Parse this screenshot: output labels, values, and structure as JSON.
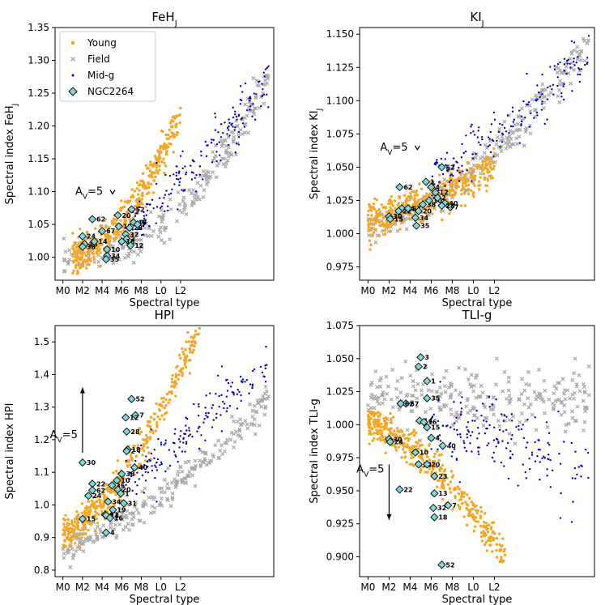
{
  "chart_data": [
    {
      "type": "scatter",
      "title": "FeH",
      "title_sub": "J",
      "xlabel": "Spectral type",
      "ylabel": "Spectral index FeH",
      "ylabel_sub": "J",
      "xlim": [
        -0.8,
        21.5
      ],
      "ylim": [
        0.965,
        1.35
      ],
      "x_ticks": [
        0,
        2,
        4,
        6,
        8,
        10,
        12
      ],
      "x_tick_labels": [
        "M0",
        "M2",
        "M4",
        "M6",
        "M8",
        "L0",
        "L2"
      ],
      "y_ticks": [
        1.0,
        1.05,
        1.1,
        1.15,
        1.2,
        1.25,
        1.3,
        1.35
      ],
      "y_tick_labels": [
        "1.00",
        "1.05",
        "1.10",
        "1.15",
        "1.20",
        "1.25",
        "1.30",
        "1.35"
      ],
      "legend": {
        "placement": "top-left",
        "entries": [
          {
            "label": "Young",
            "marker": "dot",
            "color": "#f5a623"
          },
          {
            "label": "Field",
            "marker": "x",
            "color": "#a9a9a9"
          },
          {
            "label": "Mid-g",
            "marker": "dot-small",
            "color": "#0000cc"
          },
          {
            "label": "NGC2264",
            "marker": "diamond",
            "color": "#7fd8d8"
          }
        ]
      },
      "av_arrow": {
        "label": "A",
        "sub": "V",
        "value": "=5",
        "x": 2.5,
        "y_start": 1.1,
        "y_end": 1.095
      },
      "field_trend": {
        "x0": 0,
        "x1": 21,
        "y0": 1.0,
        "y1": 1.28,
        "power": 2.3
      },
      "young_trend": {
        "x0": 1,
        "x1": 12,
        "y0": 1.0,
        "y1": 1.22,
        "power": 1.8
      },
      "midg_trend": {
        "x0": 7,
        "x1": 21,
        "y0": 1.06,
        "y1": 1.27,
        "power": 1.3
      },
      "ngc2264": [
        {
          "label": "62",
          "x": 3.0,
          "y": 1.058
        },
        {
          "label": "24",
          "x": 2.0,
          "y": 1.032
        },
        {
          "label": "16",
          "x": 2.2,
          "y": 1.02
        },
        {
          "label": "38",
          "x": 2.0,
          "y": 1.016
        },
        {
          "label": "67",
          "x": 4.0,
          "y": 1.04
        },
        {
          "label": "14",
          "x": 3.2,
          "y": 1.024
        },
        {
          "label": "10",
          "x": 4.5,
          "y": 1.012
        },
        {
          "label": "34",
          "x": 4.5,
          "y": 1.002
        },
        {
          "label": "35",
          "x": 4.4,
          "y": 0.997
        },
        {
          "label": "20",
          "x": 5.6,
          "y": 1.064
        },
        {
          "label": "15",
          "x": 5.7,
          "y": 1.047
        },
        {
          "label": "28",
          "x": 6.8,
          "y": 1.045
        },
        {
          "label": "40",
          "x": 7.2,
          "y": 1.053
        },
        {
          "label": "7",
          "x": 7.6,
          "y": 1.05
        },
        {
          "label": "52",
          "x": 7.0,
          "y": 1.073
        },
        {
          "label": "32",
          "x": 6.4,
          "y": 1.035
        },
        {
          "label": "2",
          "x": 6.5,
          "y": 1.028
        },
        {
          "label": "18",
          "x": 6.0,
          "y": 1.024
        },
        {
          "label": "12",
          "x": 6.9,
          "y": 1.018
        }
      ]
    },
    {
      "type": "scatter",
      "title": "KI",
      "title_sub": "J",
      "xlabel": "Spectral type",
      "ylabel": "Spectral index KI",
      "ylabel_sub": "J",
      "xlim": [
        -0.8,
        21.5
      ],
      "ylim": [
        0.965,
        1.155
      ],
      "x_ticks": [
        0,
        2,
        4,
        6,
        8,
        10,
        12
      ],
      "x_tick_labels": [
        "M0",
        "M2",
        "M4",
        "M6",
        "M8",
        "L0",
        "L2"
      ],
      "y_ticks": [
        0.975,
        1.0,
        1.025,
        1.05,
        1.075,
        1.1,
        1.125,
        1.15
      ],
      "y_tick_labels": [
        "0.975",
        "1.000",
        "1.025",
        "1.050",
        "1.075",
        "1.100",
        "1.125",
        "1.150"
      ],
      "av_arrow": {
        "label": "A",
        "sub": "V",
        "value": "=5",
        "x": 2.3,
        "y_start": 1.065,
        "y_end": 1.063
      },
      "field_trend": {
        "x0": 0,
        "x1": 21,
        "y0": 1.005,
        "y1": 1.145,
        "power": 1.6
      },
      "young_trend": {
        "x0": 0,
        "x1": 12,
        "y0": 1.01,
        "y1": 1.05,
        "power": 1.3
      },
      "midg_trend": {
        "x0": 6,
        "x1": 21,
        "y0": 1.04,
        "y1": 1.13,
        "power": 1.0
      },
      "ngc2264": [
        {
          "label": "62",
          "x": 3.0,
          "y": 1.035
        },
        {
          "label": "52",
          "x": 7.0,
          "y": 1.05
        },
        {
          "label": "1",
          "x": 5.5,
          "y": 1.039
        },
        {
          "label": "4",
          "x": 6.0,
          "y": 1.035
        },
        {
          "label": "12",
          "x": 6.4,
          "y": 1.031
        },
        {
          "label": "30",
          "x": 2.0,
          "y": 1.013
        },
        {
          "label": "15",
          "x": 2.1,
          "y": 1.011
        },
        {
          "label": "24",
          "x": 3.2,
          "y": 1.019
        },
        {
          "label": "22",
          "x": 2.9,
          "y": 1.017
        },
        {
          "label": "67",
          "x": 3.8,
          "y": 1.019
        },
        {
          "label": "20",
          "x": 4.8,
          "y": 1.017
        },
        {
          "label": "38",
          "x": 5.2,
          "y": 1.022
        },
        {
          "label": "34",
          "x": 4.5,
          "y": 1.012
        },
        {
          "label": "35",
          "x": 4.6,
          "y": 1.006
        },
        {
          "label": "10",
          "x": 5.8,
          "y": 1.025
        },
        {
          "label": "40",
          "x": 7.3,
          "y": 1.023
        },
        {
          "label": "7",
          "x": 7.8,
          "y": 1.02
        },
        {
          "label": "2",
          "x": 6.6,
          "y": 1.027
        },
        {
          "label": "28",
          "x": 7.0,
          "y": 1.021
        }
      ]
    },
    {
      "type": "scatter",
      "title": "HPI",
      "title_sub": "",
      "xlabel": "Spectral type",
      "ylabel": "Spectral index HPI",
      "ylabel_sub": "",
      "xlim": [
        -0.8,
        21.5
      ],
      "ylim": [
        0.78,
        1.55
      ],
      "x_ticks": [
        0,
        2,
        4,
        6,
        8,
        10,
        12
      ],
      "x_tick_labels": [
        "M0",
        "M2",
        "M4",
        "M6",
        "M8",
        "L0",
        "L2"
      ],
      "y_ticks": [
        0.8,
        0.9,
        1.0,
        1.1,
        1.2,
        1.3,
        1.4,
        1.5
      ],
      "y_tick_labels": [
        "0.8",
        "0.9",
        "1.0",
        "1.1",
        "1.2",
        "1.3",
        "1.4",
        "1.5"
      ],
      "av_arrow": {
        "label": "A",
        "sub": "V",
        "value": "=5",
        "x": 2.0,
        "y_start": 1.16,
        "y_end": 1.36
      },
      "field_trend": {
        "x0": 0,
        "x1": 21,
        "y0": 0.87,
        "y1": 1.32,
        "power": 1.4
      },
      "young_trend": {
        "x0": 0,
        "x1": 14,
        "y0": 0.92,
        "y1": 1.55,
        "power": 1.6
      },
      "midg_trend": {
        "x0": 6,
        "x1": 21,
        "y0": 1.06,
        "y1": 1.45,
        "power": 1.1
      },
      "ngc2264": [
        {
          "label": "30",
          "x": 2.0,
          "y": 1.13
        },
        {
          "label": "22",
          "x": 3.0,
          "y": 1.065
        },
        {
          "label": "62",
          "x": 3.0,
          "y": 1.045
        },
        {
          "label": "24",
          "x": 2.6,
          "y": 1.028
        },
        {
          "label": "15",
          "x": 2.0,
          "y": 0.957
        },
        {
          "label": "52",
          "x": 7.0,
          "y": 1.325
        },
        {
          "label": "7",
          "x": 7.4,
          "y": 1.275
        },
        {
          "label": "12",
          "x": 6.4,
          "y": 1.268
        },
        {
          "label": "28",
          "x": 6.5,
          "y": 1.225
        },
        {
          "label": "18",
          "x": 6.6,
          "y": 1.17
        },
        {
          "label": "2",
          "x": 6.5,
          "y": 1.165
        },
        {
          "label": "40",
          "x": 7.3,
          "y": 1.115
        },
        {
          "label": "38",
          "x": 6.0,
          "y": 1.095
        },
        {
          "label": "10",
          "x": 5.5,
          "y": 1.075
        },
        {
          "label": "35",
          "x": 5.0,
          "y": 1.06
        },
        {
          "label": "20",
          "x": 5.6,
          "y": 1.047
        },
        {
          "label": "1",
          "x": 5.9,
          "y": 1.035
        },
        {
          "label": "31",
          "x": 6.2,
          "y": 1.005
        },
        {
          "label": "19",
          "x": 5.1,
          "y": 0.985
        },
        {
          "label": "67",
          "x": 4.3,
          "y": 0.97
        },
        {
          "label": "14",
          "x": 4.4,
          "y": 0.968
        },
        {
          "label": "16",
          "x": 4.8,
          "y": 0.96
        },
        {
          "label": "34",
          "x": 4.6,
          "y": 1.01
        },
        {
          "label": "4",
          "x": 4.4,
          "y": 0.915
        }
      ]
    },
    {
      "type": "scatter",
      "title": "TLI-g",
      "title_sub": "",
      "xlabel": "Spectral type",
      "ylabel": "Spectral index TLI-g",
      "ylabel_sub": "",
      "xlim": [
        -0.8,
        21.5
      ],
      "ylim": [
        0.885,
        1.075
      ],
      "x_ticks": [
        0,
        2,
        4,
        6,
        8,
        10,
        12
      ],
      "x_tick_labels": [
        "M0",
        "M2",
        "M4",
        "M6",
        "M8",
        "L0",
        "L2"
      ],
      "y_ticks": [
        0.9,
        0.925,
        0.95,
        0.975,
        1.0,
        1.025,
        1.05,
        1.075
      ],
      "y_tick_labels": [
        "0.900",
        "0.925",
        "0.950",
        "0.975",
        "1.000",
        "1.025",
        "1.050",
        "1.075"
      ],
      "av_arrow": {
        "label": "A",
        "sub": "V",
        "value": "=5",
        "x": 2.0,
        "y_start": 0.97,
        "y_end": 0.928
      },
      "field_trend": {
        "x0": 0,
        "x1": 21,
        "y0": 1.02,
        "y1": 1.02,
        "power": 1.0
      },
      "young_trend": {
        "x0": 0,
        "x1": 13,
        "y0": 1.0,
        "y1": 0.9,
        "power": 1.5
      },
      "midg_trend": {
        "x0": 6,
        "x1": 21,
        "y0": 1.0,
        "y1": 0.97,
        "power": 1.0
      },
      "ngc2264": [
        {
          "label": "3",
          "x": 5.0,
          "y": 1.051
        },
        {
          "label": "2",
          "x": 4.8,
          "y": 1.044
        },
        {
          "label": "1",
          "x": 5.6,
          "y": 1.033
        },
        {
          "label": "35",
          "x": 5.6,
          "y": 1.02
        },
        {
          "label": "67",
          "x": 3.6,
          "y": 1.016
        },
        {
          "label": "62",
          "x": 3.1,
          "y": 1.016
        },
        {
          "label": "14",
          "x": 4.9,
          "y": 1.003
        },
        {
          "label": "16",
          "x": 5.3,
          "y": 1.002
        },
        {
          "label": "15",
          "x": 5.6,
          "y": 0.998
        },
        {
          "label": "30",
          "x": 2.0,
          "y": 0.989
        },
        {
          "label": "24",
          "x": 2.1,
          "y": 0.987
        },
        {
          "label": "10",
          "x": 4.5,
          "y": 0.979
        },
        {
          "label": "4",
          "x": 6.0,
          "y": 0.99
        },
        {
          "label": "40",
          "x": 7.1,
          "y": 0.984
        },
        {
          "label": "34",
          "x": 4.8,
          "y": 0.97
        },
        {
          "label": "20",
          "x": 5.6,
          "y": 0.97
        },
        {
          "label": "22",
          "x": 3.0,
          "y": 0.951
        },
        {
          "label": "23",
          "x": 6.3,
          "y": 0.961
        },
        {
          "label": "13",
          "x": 6.3,
          "y": 0.948
        },
        {
          "label": "32",
          "x": 6.2,
          "y": 0.937
        },
        {
          "label": "7",
          "x": 7.6,
          "y": 0.939
        },
        {
          "label": "18",
          "x": 6.3,
          "y": 0.93
        },
        {
          "label": "52",
          "x": 7.0,
          "y": 0.894
        }
      ]
    }
  ]
}
